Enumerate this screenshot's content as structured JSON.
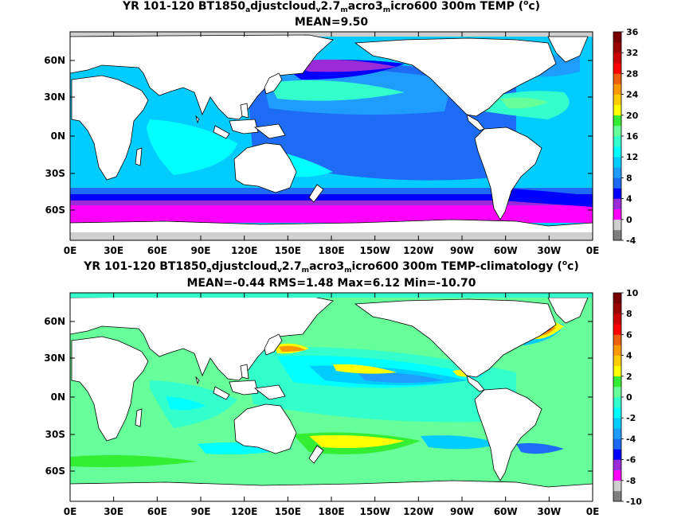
{
  "panels": [
    {
      "title_parts": [
        "YR 101-120 BT1850",
        "a",
        "djustcloud",
        "v",
        "2.7",
        "m",
        "acro3",
        "m",
        "icro600 300m TEMP (",
        "o",
        "c)"
      ],
      "stats": "MEAN=9.50",
      "colorbar": {
        "ticks": [
          "36",
          "32",
          "28",
          "24",
          "20",
          "16",
          "12",
          "8",
          "4",
          "0",
          "-4"
        ],
        "colors": [
          "#7f7f7f",
          "#cfcfcf",
          "#ff00ff",
          "#9b2ad8",
          "#0000ff",
          "#1e6cf5",
          "#1f9dff",
          "#00ccff",
          "#00ffff",
          "#33ffcc",
          "#66ff99",
          "#33ee33",
          "#ffff00",
          "#ffcc00",
          "#ff9900",
          "#f06010",
          "#ff0000",
          "#cc0000",
          "#990000",
          "#7a0000"
        ]
      },
      "y_ticks": [
        "60N",
        "30N",
        "0N",
        "30S",
        "60S"
      ],
      "x_ticks": [
        "0E",
        "30E",
        "60E",
        "90E",
        "120E",
        "150E",
        "180E",
        "150W",
        "120W",
        "90W",
        "60W",
        "30W",
        "0E"
      ]
    },
    {
      "title_parts": [
        "YR 101-120 BT1850",
        "a",
        "djustcloud",
        "v",
        "2.7",
        "m",
        "acro3",
        "m",
        "icro600 300m TEMP-climatology (",
        "o",
        "c)"
      ],
      "stats": "MEAN=-0.44   RMS=1.48   Max=6.12   Min=-10.70",
      "colorbar": {
        "ticks": [
          "10",
          "8",
          "6",
          "4",
          "2",
          "0",
          "-2",
          "-4",
          "-6",
          "-8",
          "-10"
        ],
        "colors": [
          "#7f7f7f",
          "#cfcfcf",
          "#ff00ff",
          "#9b2ad8",
          "#0000ff",
          "#1e6cf5",
          "#1f9dff",
          "#00ccff",
          "#00ffff",
          "#33ffcc",
          "#66ff99",
          "#33ee33",
          "#ffff00",
          "#ffcc00",
          "#ff9900",
          "#f06010",
          "#ff0000",
          "#cc0000",
          "#990000",
          "#7a0000"
        ]
      },
      "y_ticks": [
        "60N",
        "30N",
        "0N",
        "30S",
        "60S"
      ],
      "x_ticks": [
        "0E",
        "30E",
        "60E",
        "90E",
        "120E",
        "150E",
        "180E",
        "150W",
        "120W",
        "90W",
        "60W",
        "30W",
        "0E"
      ]
    }
  ]
}
